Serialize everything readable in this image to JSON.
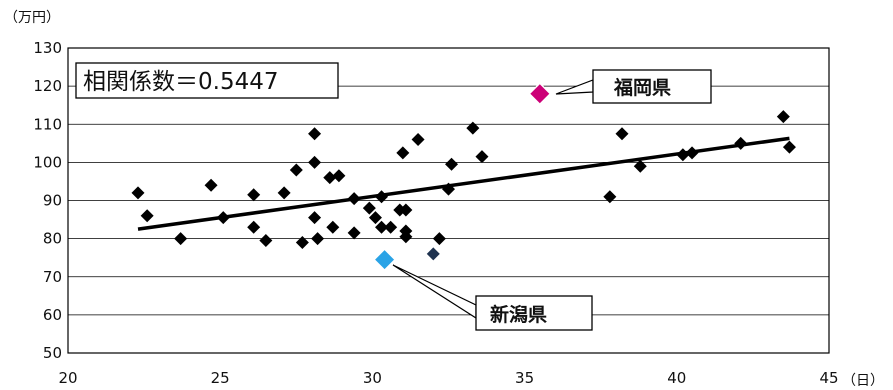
{
  "chart_data": {
    "type": "scatter",
    "y_unit": "（万円）",
    "x_unit": "（日）",
    "xlim": [
      20,
      45
    ],
    "ylim": [
      50,
      130
    ],
    "x_ticks": [
      20,
      25,
      30,
      35,
      40,
      45
    ],
    "y_ticks": [
      50,
      60,
      70,
      80,
      90,
      100,
      110,
      120,
      130
    ],
    "grid": true,
    "correlation_label": "相関係数＝0.5447",
    "trendline": {
      "x": [
        22.3,
        43.7
      ],
      "y": [
        82.5,
        106.3
      ]
    },
    "colors": {
      "points": "#000000",
      "fukuoka": "#cc0077",
      "niigata": "#2aa3e6",
      "highlight": "#1f3350"
    },
    "points": [
      {
        "x": 22.3,
        "y": 92
      },
      {
        "x": 22.6,
        "y": 86
      },
      {
        "x": 23.7,
        "y": 80
      },
      {
        "x": 24.7,
        "y": 94
      },
      {
        "x": 25.1,
        "y": 85.5
      },
      {
        "x": 26.1,
        "y": 91.5
      },
      {
        "x": 26.1,
        "y": 83
      },
      {
        "x": 26.5,
        "y": 79.5
      },
      {
        "x": 27.1,
        "y": 92
      },
      {
        "x": 27.5,
        "y": 98
      },
      {
        "x": 27.7,
        "y": 79
      },
      {
        "x": 28.1,
        "y": 107.5
      },
      {
        "x": 28.1,
        "y": 100
      },
      {
        "x": 28.1,
        "y": 85.5
      },
      {
        "x": 28.2,
        "y": 80
      },
      {
        "x": 28.6,
        "y": 96
      },
      {
        "x": 28.9,
        "y": 96.5
      },
      {
        "x": 28.7,
        "y": 83
      },
      {
        "x": 29.4,
        "y": 90.5
      },
      {
        "x": 29.4,
        "y": 81.5
      },
      {
        "x": 29.9,
        "y": 88
      },
      {
        "x": 30.1,
        "y": 85.5
      },
      {
        "x": 30.3,
        "y": 91
      },
      {
        "x": 30.3,
        "y": 83
      },
      {
        "x": 30.6,
        "y": 83
      },
      {
        "x": 30.9,
        "y": 87.5
      },
      {
        "x": 31.0,
        "y": 102.5
      },
      {
        "x": 31.1,
        "y": 87.5
      },
      {
        "x": 31.1,
        "y": 82
      },
      {
        "x": 31.1,
        "y": 80.5
      },
      {
        "x": 31.5,
        "y": 106
      },
      {
        "x": 32.2,
        "y": 80
      },
      {
        "x": 32.5,
        "y": 93
      },
      {
        "x": 32.6,
        "y": 99.5
      },
      {
        "x": 33.3,
        "y": 109
      },
      {
        "x": 33.6,
        "y": 101.5
      },
      {
        "x": 37.8,
        "y": 91
      },
      {
        "x": 38.2,
        "y": 107.5
      },
      {
        "x": 38.8,
        "y": 99
      },
      {
        "x": 40.2,
        "y": 102
      },
      {
        "x": 40.5,
        "y": 102.5
      },
      {
        "x": 42.1,
        "y": 105
      },
      {
        "x": 43.5,
        "y": 112
      },
      {
        "x": 43.7,
        "y": 104
      }
    ],
    "special_points": [
      {
        "id": "fukuoka",
        "label": "福岡県",
        "x": 35.5,
        "y": 118
      },
      {
        "id": "niigata",
        "label": "新潟県",
        "x": 30.4,
        "y": 74.5
      },
      {
        "id": "dark",
        "label": "",
        "x": 32.0,
        "y": 76
      }
    ]
  }
}
